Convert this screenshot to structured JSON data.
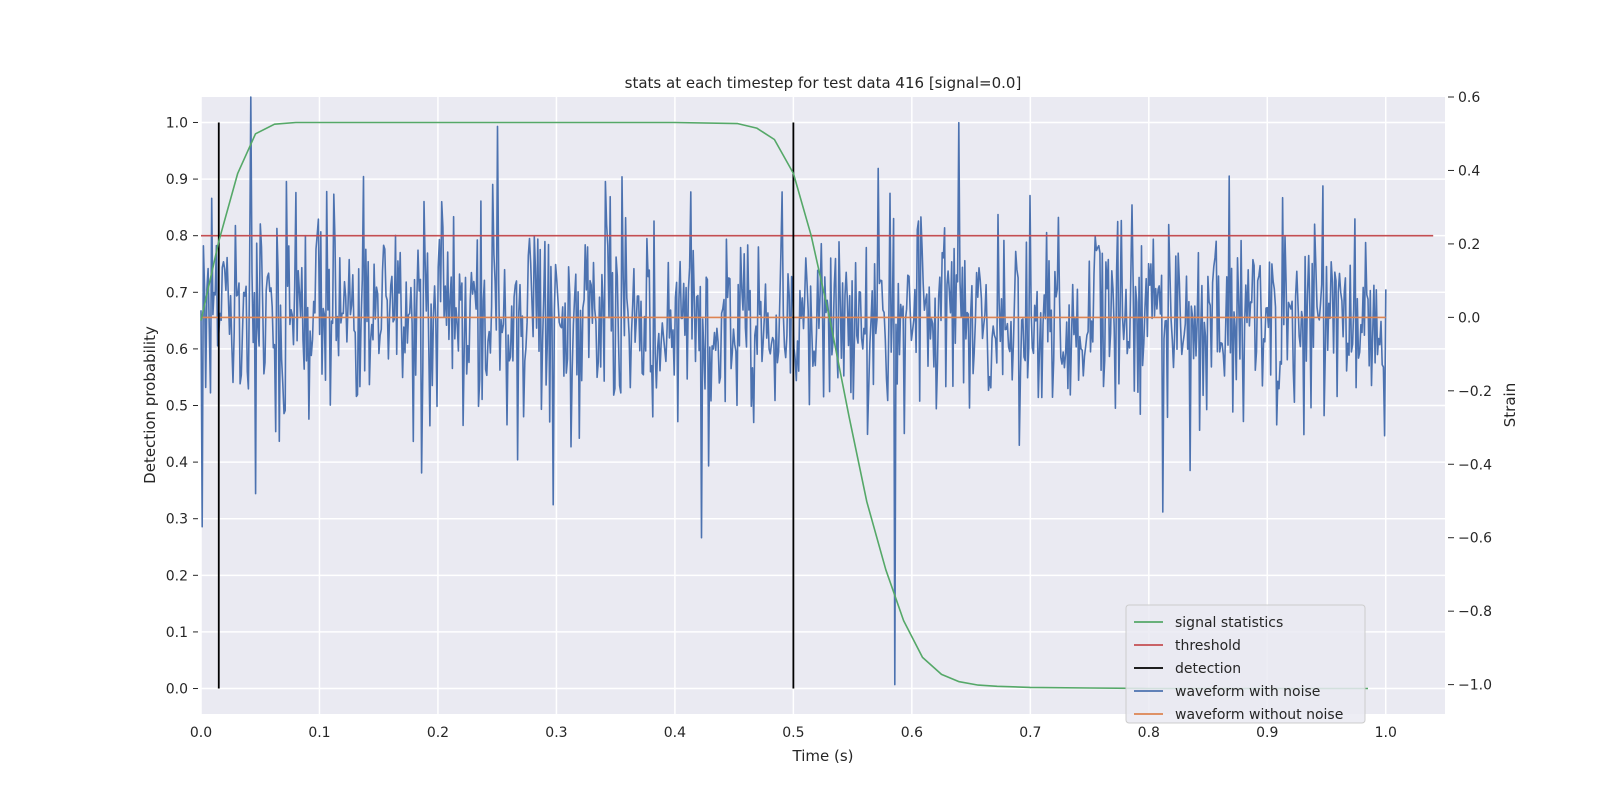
{
  "chart_data": {
    "type": "line",
    "title": "stats at each timestep for test data 416 [signal=0.0]",
    "xlabel": "Time (s)",
    "ylabel_left": "Detection probability",
    "ylabel_right": "Strain",
    "xlim": [
      0.0,
      1.05
    ],
    "ylim_left": [
      -0.045,
      1.045
    ],
    "ylim_right": [
      -1.08,
      0.6
    ],
    "xticks": [
      "0.0",
      "0.1",
      "0.2",
      "0.3",
      "0.4",
      "0.5",
      "0.6",
      "0.7",
      "0.8",
      "0.9",
      "1.0"
    ],
    "yticks_left": [
      "0.0",
      "0.1",
      "0.2",
      "0.3",
      "0.4",
      "0.5",
      "0.6",
      "0.7",
      "0.8",
      "0.9",
      "1.0"
    ],
    "yticks_right": [
      "−1.0",
      "−0.8",
      "−0.6",
      "−0.4",
      "−0.2",
      "0.0",
      "0.2",
      "0.4",
      "0.6"
    ],
    "grid": true,
    "legend_position": "lower-right",
    "series": [
      {
        "name": "signal statistics",
        "color": "#55a868",
        "axis": "left",
        "x": [
          0.0,
          0.015,
          0.031,
          0.046,
          0.062,
          0.08,
          0.15,
          0.3,
          0.4,
          0.453,
          0.469,
          0.484,
          0.5,
          0.515,
          0.531,
          0.547,
          0.562,
          0.578,
          0.593,
          0.609,
          0.625,
          0.64,
          0.656,
          0.672,
          0.7,
          0.75,
          0.8,
          0.9,
          0.985
        ],
        "values": [
          0.65,
          0.79,
          0.91,
          0.98,
          0.997,
          1.0,
          1.0,
          1.0,
          1.0,
          0.998,
          0.99,
          0.97,
          0.91,
          0.8,
          0.65,
          0.48,
          0.33,
          0.21,
          0.12,
          0.055,
          0.025,
          0.012,
          0.006,
          0.004,
          0.002,
          0.001,
          0.0,
          0.0,
          0.0
        ]
      },
      {
        "name": "threshold",
        "color": "#c44e52",
        "axis": "left",
        "x": [
          0.0,
          1.04
        ],
        "values": [
          0.8,
          0.8
        ]
      },
      {
        "name": "detection",
        "color": "#000000",
        "axis": "left",
        "segments": [
          {
            "x": 0.015,
            "y0": 0.0,
            "y1": 1.0
          },
          {
            "x": 0.5,
            "y0": 0.0,
            "y1": 1.0
          }
        ]
      },
      {
        "name": "waveform with noise",
        "color": "#4c72b0",
        "axis": "right",
        "x_start": 0.0,
        "x_end": 1.0,
        "n_points": 1000,
        "approx_std": 0.14,
        "extremes": [
          {
            "x": 0.001,
            "y": -0.57
          },
          {
            "x": 0.042,
            "y": 0.6
          },
          {
            "x": 0.046,
            "y": -0.48
          },
          {
            "x": 0.25,
            "y": 0.52
          },
          {
            "x": 0.297,
            "y": -0.51
          },
          {
            "x": 0.422,
            "y": -0.6
          },
          {
            "x": 0.586,
            "y": -1.0
          },
          {
            "x": 0.64,
            "y": 0.53
          },
          {
            "x": 0.812,
            "y": -0.53
          }
        ]
      },
      {
        "name": "waveform without noise",
        "color": "#dd8452",
        "axis": "right",
        "x": [
          0.0,
          1.0
        ],
        "values": [
          0.0,
          0.0
        ]
      }
    ]
  }
}
